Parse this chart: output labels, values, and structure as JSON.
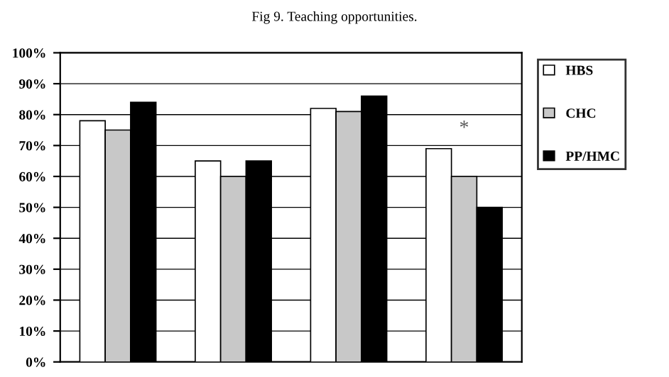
{
  "chart_data": {
    "type": "bar",
    "title": "Fig 9. Teaching opportunities.",
    "categories": [
      null,
      null,
      null,
      null
    ],
    "series": [
      {
        "name": "HBS",
        "color": "#ffffff",
        "values": [
          78,
          65,
          82,
          69
        ]
      },
      {
        "name": "CHC",
        "color": "#c8c8c8",
        "values": [
          75,
          60,
          81,
          60
        ]
      },
      {
        "name": "PP/HMC",
        "color": "#000000",
        "values": [
          84,
          65,
          86,
          50
        ]
      }
    ],
    "ylim": [
      0,
      100
    ],
    "yticks": [
      {
        "value": 0,
        "label": "0%"
      },
      {
        "value": 10,
        "label": "10%"
      },
      {
        "value": 20,
        "label": "20%"
      },
      {
        "value": 30,
        "label": "30%"
      },
      {
        "value": 40,
        "label": "40%"
      },
      {
        "value": 50,
        "label": "50%"
      },
      {
        "value": 60,
        "label": "60%"
      },
      {
        "value": 70,
        "label": "70%"
      },
      {
        "value": 80,
        "label": "80%"
      },
      {
        "value": 90,
        "label": "90%"
      },
      {
        "value": 100,
        "label": "100%"
      }
    ],
    "annotations": [
      "*"
    ],
    "grid": "y",
    "legend": "right"
  }
}
